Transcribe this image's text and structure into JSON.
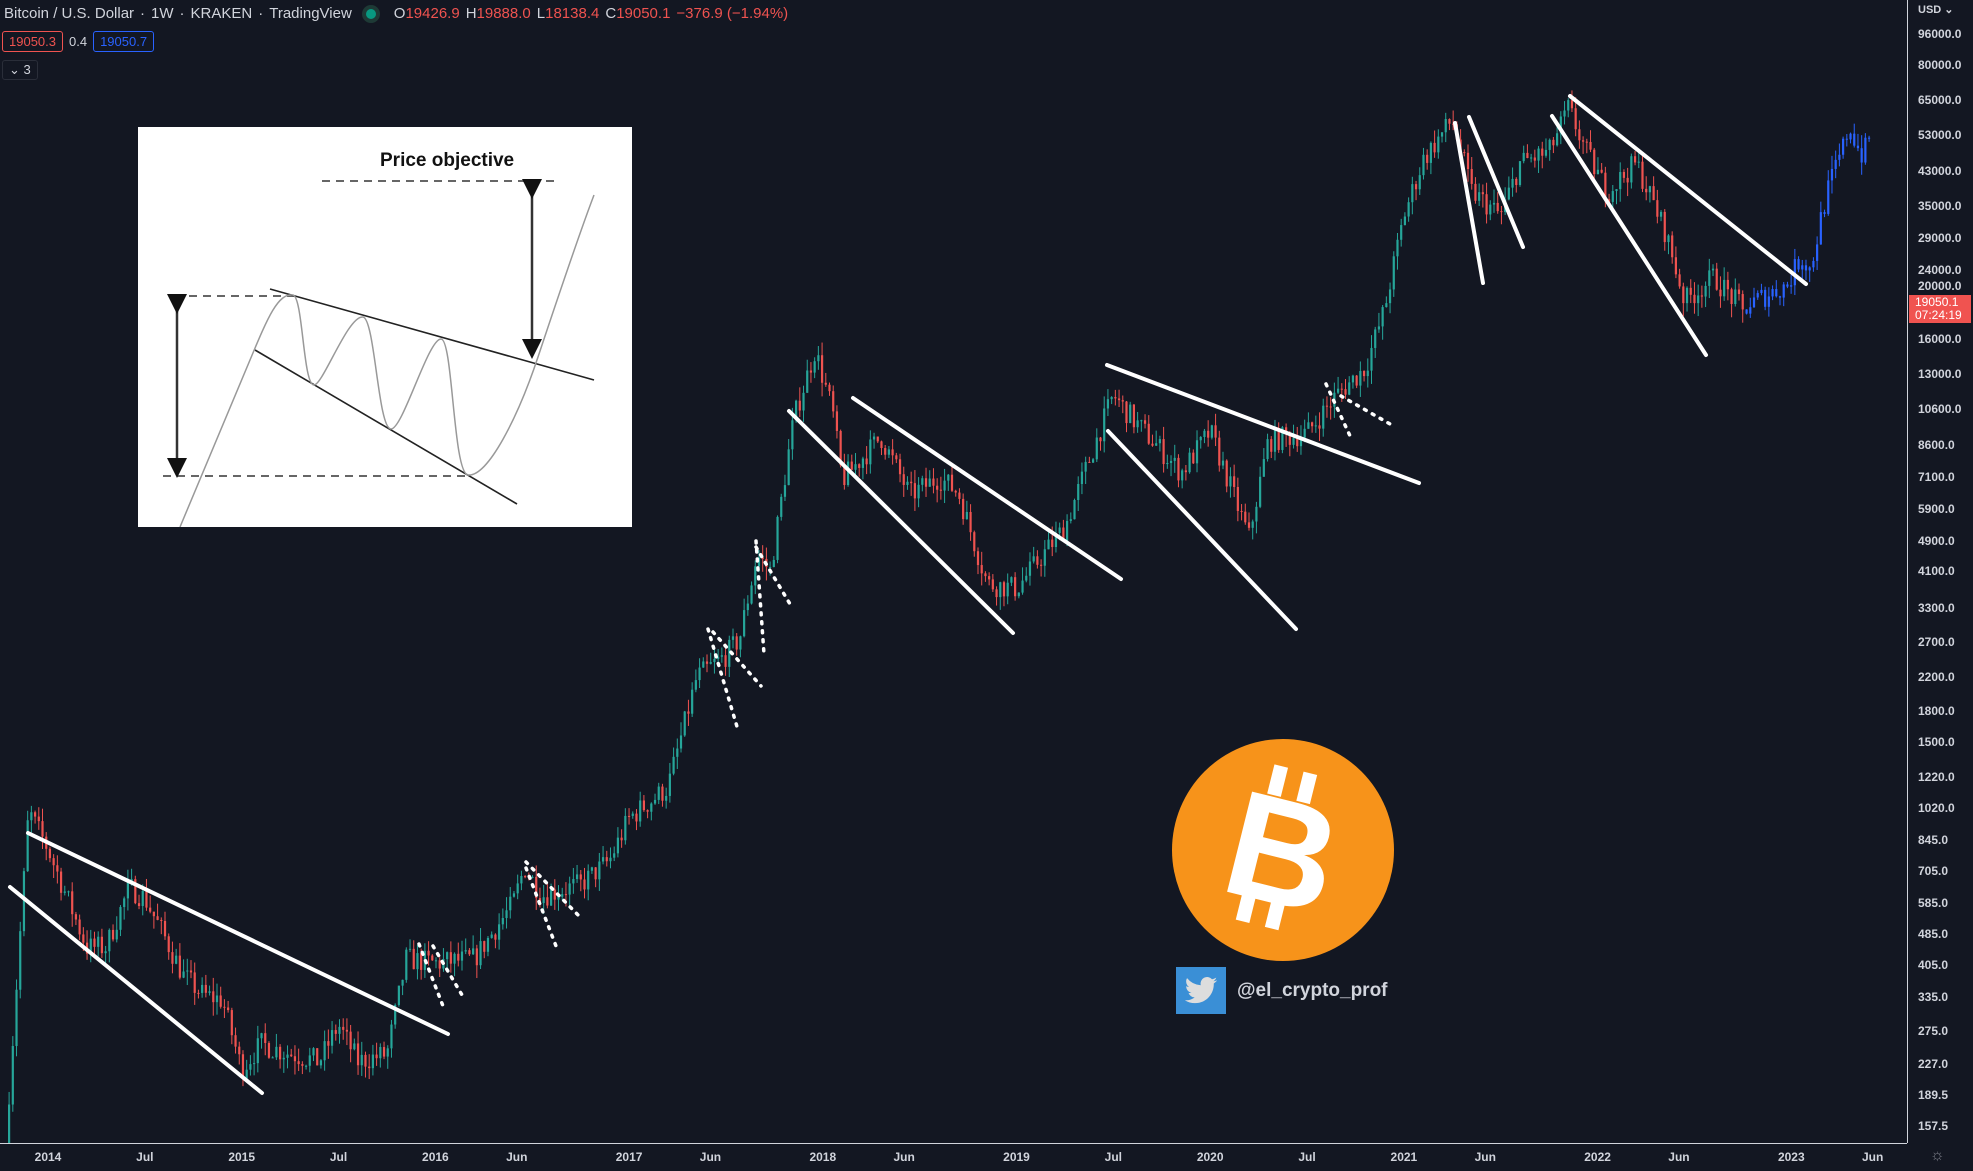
{
  "header": {
    "symbol": "Bitcoin / U.S. Dollar",
    "interval": "1W",
    "exchange": "KRAKEN",
    "source": "TradingView",
    "o_label": "O",
    "o": "19426.9",
    "h_label": "H",
    "h": "19888.0",
    "l_label": "L",
    "l": "18138.4",
    "c_label": "C",
    "c": "19050.1",
    "change": "−376.9 (−1.94%)"
  },
  "trade": {
    "sell": "19050.3",
    "spread": "0.4",
    "buy": "19050.7"
  },
  "indicators_toggle": "⌄ 3",
  "currency": "USD ⌄",
  "current_price": {
    "price": "19050.1",
    "countdown": "07:24:19"
  },
  "inset": {
    "title": "Price objective"
  },
  "watermark": {
    "handle": "@el_crypto_prof"
  },
  "colors": {
    "up": "#26a69a",
    "down": "#ef5350",
    "projection": "#2962ff",
    "background": "#131722",
    "bitcoin": "#f7931a"
  },
  "chart_data": {
    "type": "candlestick",
    "title": "Bitcoin / U.S. Dollar 1W KRAKEN",
    "scale": "log",
    "ylim": [
      150,
      100000
    ],
    "y_ticks": [
      "96000.0",
      "80000.0",
      "65000.0",
      "53000.0",
      "43000.0",
      "35000.0",
      "29000.0",
      "24000.0",
      "20000.0",
      "16000.0",
      "13000.0",
      "10600.0",
      "8600.0",
      "7100.0",
      "5900.0",
      "4900.0",
      "4100.0",
      "3300.0",
      "2700.0",
      "2200.0",
      "1800.0",
      "1500.0",
      "1220.0",
      "1020.0",
      "845.0",
      "705.0",
      "585.0",
      "485.0",
      "405.0",
      "335.0",
      "275.0",
      "227.0",
      "189.5",
      "157.5"
    ],
    "x_ticks": [
      {
        "label": "2014",
        "t": 2014.0
      },
      {
        "label": "Jul",
        "t": 2014.5
      },
      {
        "label": "2015",
        "t": 2015.0
      },
      {
        "label": "Jul",
        "t": 2015.5
      },
      {
        "label": "2016",
        "t": 2016.0
      },
      {
        "label": "Jun",
        "t": 2016.42
      },
      {
        "label": "2017",
        "t": 2017.0
      },
      {
        "label": "Jun",
        "t": 2017.42
      },
      {
        "label": "2018",
        "t": 2018.0
      },
      {
        "label": "Jun",
        "t": 2018.42
      },
      {
        "label": "2019",
        "t": 2019.0
      },
      {
        "label": "Jul",
        "t": 2019.5
      },
      {
        "label": "2020",
        "t": 2020.0
      },
      {
        "label": "Jul",
        "t": 2020.5
      },
      {
        "label": "2021",
        "t": 2021.0
      },
      {
        "label": "Jun",
        "t": 2021.42
      },
      {
        "label": "2022",
        "t": 2022.0
      },
      {
        "label": "Jun",
        "t": 2022.42
      },
      {
        "label": "2023",
        "t": 2023.0
      },
      {
        "label": "Jun",
        "t": 2023.42
      }
    ],
    "price_path": [
      [
        2013.78,
        140
      ],
      [
        2013.9,
        1000
      ],
      [
        2014.0,
        800
      ],
      [
        2014.1,
        600
      ],
      [
        2014.2,
        450
      ],
      [
        2014.3,
        450
      ],
      [
        2014.42,
        640
      ],
      [
        2014.5,
        600
      ],
      [
        2014.6,
        480
      ],
      [
        2014.7,
        380
      ],
      [
        2014.8,
        340
      ],
      [
        2014.9,
        330
      ],
      [
        2015.0,
        220
      ],
      [
        2015.1,
        255
      ],
      [
        2015.2,
        245
      ],
      [
        2015.4,
        230
      ],
      [
        2015.5,
        285
      ],
      [
        2015.6,
        230
      ],
      [
        2015.75,
        240
      ],
      [
        2015.85,
        420
      ],
      [
        2016.0,
        410
      ],
      [
        2016.2,
        420
      ],
      [
        2016.4,
        580
      ],
      [
        2016.46,
        720
      ],
      [
        2016.55,
        610
      ],
      [
        2016.75,
        650
      ],
      [
        2016.9,
        750
      ],
      [
        2017.0,
        960
      ],
      [
        2017.2,
        1150
      ],
      [
        2017.35,
        2200
      ],
      [
        2017.5,
        2500
      ],
      [
        2017.57,
        2750
      ],
      [
        2017.66,
        4500
      ],
      [
        2017.73,
        4100
      ],
      [
        2017.85,
        10000
      ],
      [
        2017.96,
        15000
      ],
      [
        2018.05,
        10500
      ],
      [
        2018.1,
        7000
      ],
      [
        2018.3,
        9000
      ],
      [
        2018.45,
        6400
      ],
      [
        2018.6,
        7100
      ],
      [
        2018.7,
        6500
      ],
      [
        2018.85,
        3800
      ],
      [
        2019.0,
        3700
      ],
      [
        2019.25,
        5300
      ],
      [
        2019.4,
        8500
      ],
      [
        2019.5,
        11500
      ],
      [
        2019.6,
        10000
      ],
      [
        2019.75,
        8300
      ],
      [
        2019.85,
        7300
      ],
      [
        2020.0,
        9300
      ],
      [
        2020.2,
        5000
      ],
      [
        2020.3,
        8800
      ],
      [
        2020.5,
        9200
      ],
      [
        2020.65,
        11500
      ],
      [
        2020.8,
        13500
      ],
      [
        2020.9,
        19000
      ],
      [
        2021.0,
        33000
      ],
      [
        2021.1,
        46000
      ],
      [
        2021.25,
        58000
      ],
      [
        2021.35,
        38000
      ],
      [
        2021.5,
        33000
      ],
      [
        2021.6,
        45000
      ],
      [
        2021.75,
        48000
      ],
      [
        2021.85,
        62000
      ],
      [
        2021.95,
        47000
      ],
      [
        2022.05,
        38000
      ],
      [
        2022.2,
        45000
      ],
      [
        2022.35,
        30000
      ],
      [
        2022.45,
        20000
      ],
      [
        2022.6,
        23000
      ],
      [
        2022.75,
        19050
      ]
    ],
    "projection_path": [
      [
        2022.75,
        19050
      ],
      [
        2022.85,
        20500
      ],
      [
        2022.98,
        22000
      ],
      [
        2023.05,
        26000
      ],
      [
        2023.1,
        24000
      ],
      [
        2023.15,
        32000
      ],
      [
        2023.2,
        40000
      ],
      [
        2023.26,
        48000
      ],
      [
        2023.3,
        56000
      ],
      [
        2023.36,
        47000
      ],
      [
        2023.42,
        52000
      ]
    ]
  }
}
